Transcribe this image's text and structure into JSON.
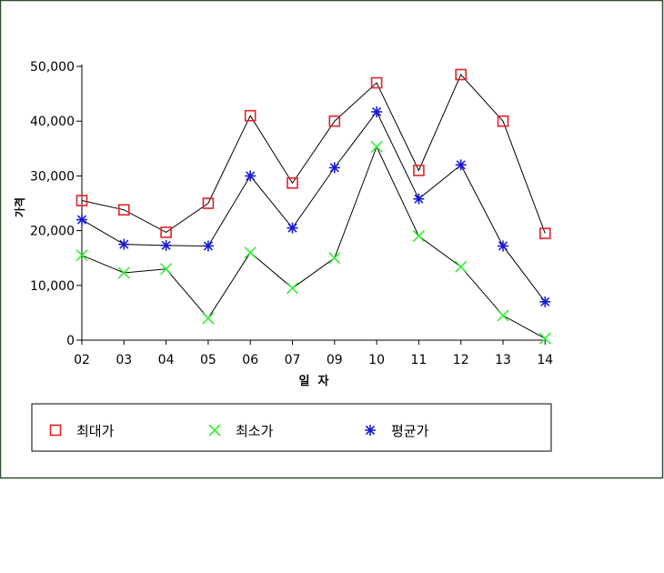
{
  "chart_data": {
    "type": "line",
    "title": "",
    "xlabel": "일  자",
    "ylabel": "가격",
    "categories": [
      "02",
      "03",
      "04",
      "05",
      "06",
      "07",
      "09",
      "10",
      "11",
      "12",
      "13",
      "14"
    ],
    "ylim": [
      0,
      50000
    ],
    "yticks": [
      0,
      10000,
      20000,
      30000,
      40000,
      50000
    ],
    "ytick_labels": [
      "0",
      "10,000",
      "20,000",
      "30,000",
      "40,000",
      "50,000"
    ],
    "grid": false,
    "legend_position": "bottom",
    "series": [
      {
        "name": "최대가",
        "marker": "square",
        "color": "#e8202a",
        "values": [
          25500,
          23800,
          19700,
          25000,
          41000,
          28700,
          40000,
          47000,
          31000,
          48500,
          40000,
          19500
        ]
      },
      {
        "name": "최소가",
        "marker": "x",
        "color": "#33ee33",
        "values": [
          15500,
          12300,
          13000,
          4000,
          16000,
          9500,
          15000,
          35300,
          19000,
          13400,
          4500,
          300
        ]
      },
      {
        "name": "평균가",
        "marker": "asterisk",
        "color": "#1a1ad8",
        "values": [
          22000,
          17500,
          17300,
          17200,
          30000,
          20500,
          31500,
          41700,
          25800,
          32000,
          17200,
          7000
        ]
      }
    ]
  }
}
